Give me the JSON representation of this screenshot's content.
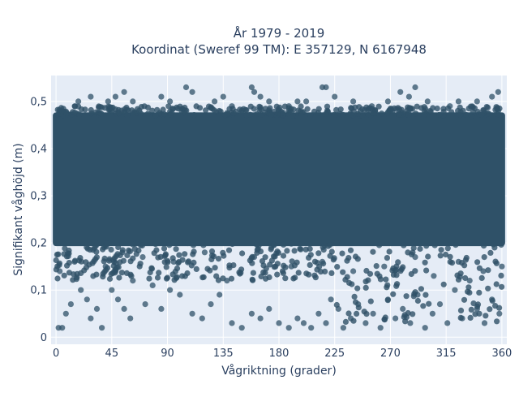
{
  "chart_data": {
    "type": "scatter",
    "title_line1": "År 1979 - 2019",
    "title_line2": "Koordinat (Sweref 99 TM): E 357129, N 6167948",
    "xlabel": "Vågriktning (grader)",
    "ylabel": "Signifikant våghöjd (m)",
    "xlim": [
      -4,
      364
    ],
    "ylim": [
      -0.015,
      0.555
    ],
    "xticks": [
      0,
      45,
      90,
      135,
      180,
      225,
      270,
      315,
      360
    ],
    "xtick_labels": [
      "0",
      "45",
      "90",
      "135",
      "180",
      "225",
      "270",
      "315",
      "360"
    ],
    "yticks": [
      0,
      0.1,
      0.2,
      0.3,
      0.4,
      0.5
    ],
    "ytick_labels": [
      "0",
      "0,1",
      "0,2",
      "0,3",
      "0,4",
      "0,5"
    ],
    "grid": true,
    "marker_color": "#2f5168",
    "plot_background": "#e5ecf6",
    "density_band": {
      "x_range": [
        0,
        360
      ],
      "y_range": [
        0.2,
        0.47
      ]
    },
    "points": [
      [
        2,
        0.02
      ],
      [
        5,
        0.02
      ],
      [
        8,
        0.05
      ],
      [
        12,
        0.07
      ],
      [
        20,
        0.1
      ],
      [
        25,
        0.08
      ],
      [
        28,
        0.04
      ],
      [
        33,
        0.06
      ],
      [
        37,
        0.02
      ],
      [
        45,
        0.1
      ],
      [
        50,
        0.08
      ],
      [
        55,
        0.06
      ],
      [
        60,
        0.04
      ],
      [
        62,
        0.12
      ],
      [
        72,
        0.07
      ],
      [
        78,
        0.11
      ],
      [
        85,
        0.06
      ],
      [
        92,
        0.1
      ],
      [
        100,
        0.09
      ],
      [
        110,
        0.05
      ],
      [
        118,
        0.04
      ],
      [
        125,
        0.07
      ],
      [
        132,
        0.09
      ],
      [
        138,
        0.12
      ],
      [
        142,
        0.03
      ],
      [
        150,
        0.02
      ],
      [
        158,
        0.05
      ],
      [
        165,
        0.04
      ],
      [
        172,
        0.06
      ],
      [
        180,
        0.03
      ],
      [
        188,
        0.02
      ],
      [
        195,
        0.04
      ],
      [
        200,
        0.03
      ],
      [
        206,
        0.02
      ],
      [
        212,
        0.05
      ],
      [
        218,
        0.03
      ],
      [
        222,
        0.08
      ],
      [
        228,
        0.06
      ],
      [
        232,
        0.02
      ],
      [
        238,
        0.04
      ],
      [
        244,
        0.07
      ],
      [
        250,
        0.03
      ],
      [
        256,
        0.05
      ],
      [
        262,
        0.02
      ],
      [
        268,
        0.08
      ],
      [
        274,
        0.04
      ],
      [
        280,
        0.06
      ],
      [
        286,
        0.03
      ],
      [
        292,
        0.09
      ],
      [
        298,
        0.02
      ],
      [
        304,
        0.05
      ],
      [
        310,
        0.07
      ],
      [
        316,
        0.03
      ],
      [
        322,
        0.1
      ],
      [
        328,
        0.04
      ],
      [
        334,
        0.12
      ],
      [
        340,
        0.06
      ],
      [
        346,
        0.03
      ],
      [
        352,
        0.08
      ],
      [
        358,
        0.05
      ],
      [
        3,
        0.14
      ],
      [
        15,
        0.16
      ],
      [
        40,
        0.15
      ],
      [
        70,
        0.17
      ],
      [
        95,
        0.16
      ],
      [
        120,
        0.18
      ],
      [
        160,
        0.17
      ],
      [
        190,
        0.15
      ],
      [
        215,
        0.16
      ],
      [
        240,
        0.14
      ],
      [
        265,
        0.15
      ],
      [
        290,
        0.17
      ],
      [
        305,
        0.13
      ],
      [
        325,
        0.16
      ],
      [
        345,
        0.14
      ],
      [
        360,
        0.15
      ],
      [
        18,
        0.5
      ],
      [
        28,
        0.51
      ],
      [
        42,
        0.5
      ],
      [
        48,
        0.51
      ],
      [
        55,
        0.52
      ],
      [
        62,
        0.5
      ],
      [
        85,
        0.51
      ],
      [
        92,
        0.5
      ],
      [
        105,
        0.53
      ],
      [
        110,
        0.52
      ],
      [
        128,
        0.5
      ],
      [
        135,
        0.51
      ],
      [
        142,
        0.49
      ],
      [
        158,
        0.53
      ],
      [
        160,
        0.52
      ],
      [
        165,
        0.51
      ],
      [
        172,
        0.5
      ],
      [
        188,
        0.49
      ],
      [
        195,
        0.5
      ],
      [
        202,
        0.5
      ],
      [
        215,
        0.53
      ],
      [
        218,
        0.53
      ],
      [
        225,
        0.51
      ],
      [
        240,
        0.5
      ],
      [
        255,
        0.49
      ],
      [
        268,
        0.5
      ],
      [
        278,
        0.52
      ],
      [
        285,
        0.51
      ],
      [
        290,
        0.53
      ],
      [
        300,
        0.5
      ],
      [
        318,
        0.49
      ],
      [
        325,
        0.5
      ],
      [
        340,
        0.5
      ],
      [
        352,
        0.51
      ],
      [
        357,
        0.52
      ]
    ]
  }
}
